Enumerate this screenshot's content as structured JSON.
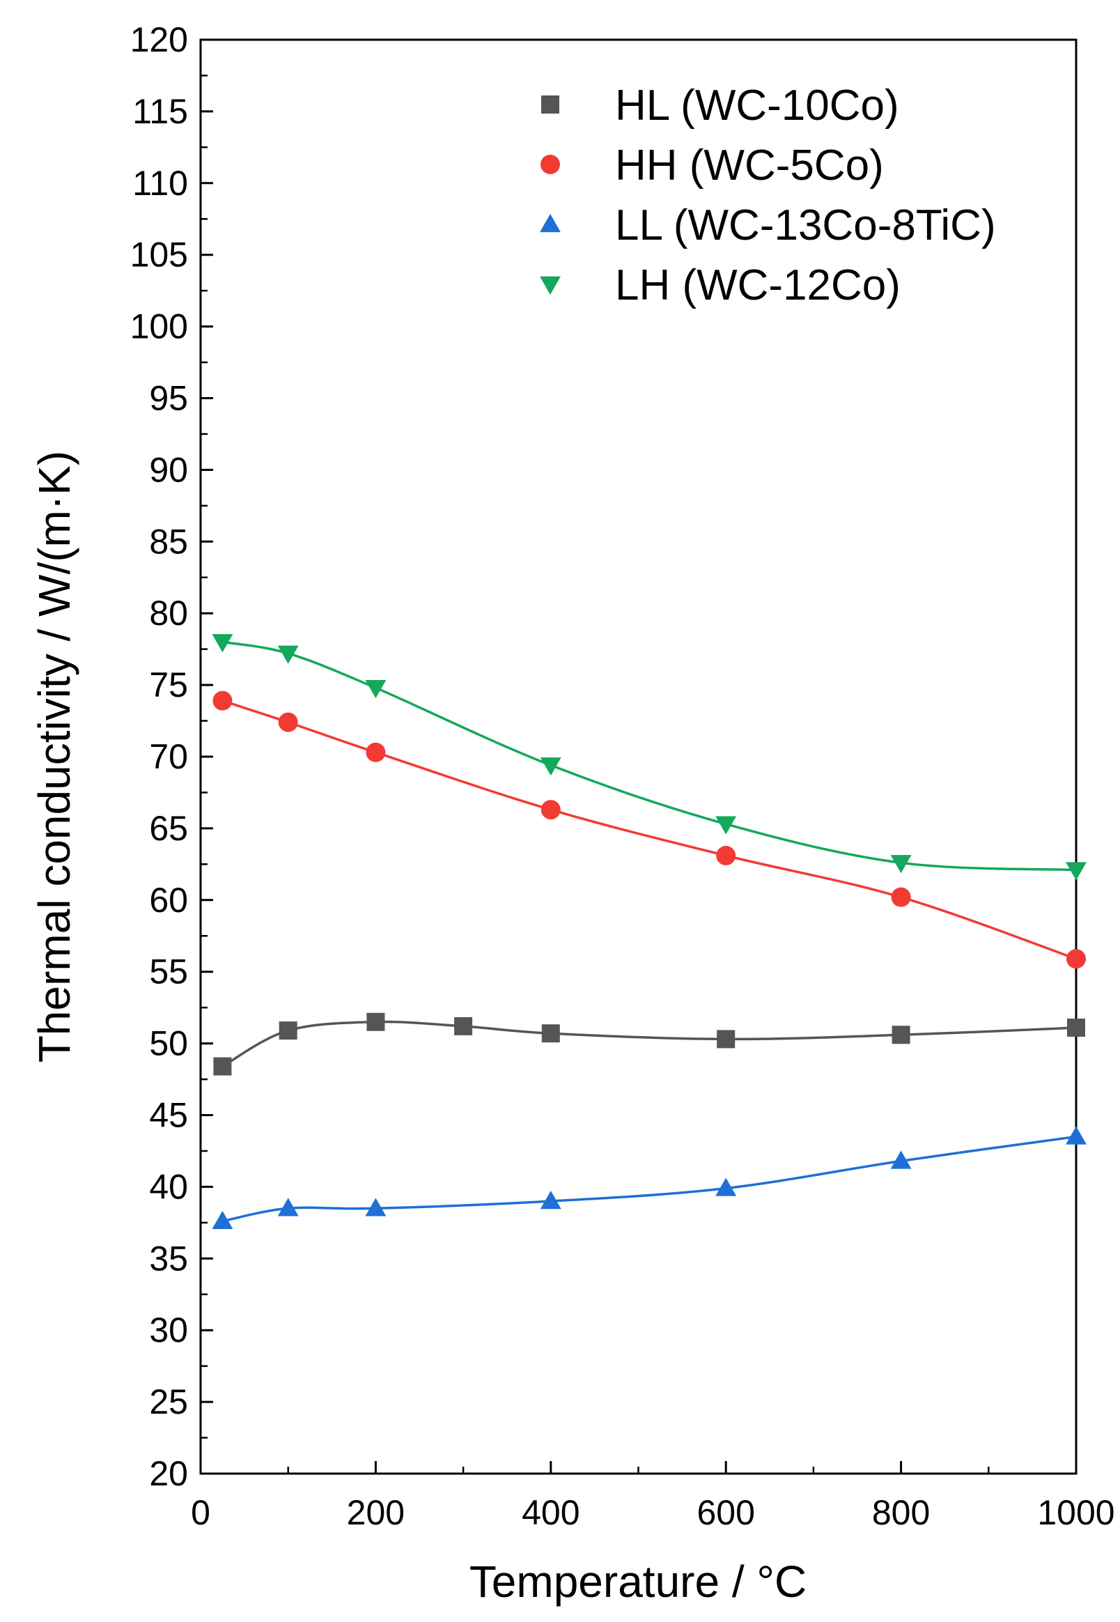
{
  "chart_data": {
    "type": "line",
    "title": "",
    "xlabel": "Temperature / °C",
    "ylabel": "Thermal conductivity / W/(m·K)",
    "xlim": [
      0,
      1000
    ],
    "ylim": [
      20,
      120
    ],
    "xticks": [
      0,
      200,
      400,
      600,
      800,
      1000
    ],
    "yticks": [
      20,
      25,
      30,
      35,
      40,
      45,
      50,
      55,
      60,
      65,
      70,
      75,
      80,
      85,
      90,
      95,
      100,
      105,
      110,
      115,
      120
    ],
    "grid": false,
    "legend_position": "top-right",
    "series": [
      {
        "name": "HL (WC-10Co)",
        "marker": "square",
        "color": "#555555",
        "x": [
          25,
          100,
          200,
          300,
          400,
          600,
          800,
          1000
        ],
        "values": [
          48.4,
          50.9,
          51.5,
          51.2,
          50.7,
          50.3,
          50.6,
          51.1
        ]
      },
      {
        "name": "HH (WC-5Co)",
        "marker": "circle",
        "color": "#f23a35",
        "x": [
          25,
          100,
          200,
          400,
          600,
          800,
          1000
        ],
        "values": [
          73.9,
          72.4,
          70.3,
          66.3,
          63.1,
          60.2,
          55.9
        ]
      },
      {
        "name": "LL (WC-13Co-8TiC)",
        "marker": "triangle-up",
        "color": "#1f6fd6",
        "x": [
          25,
          100,
          200,
          400,
          600,
          800,
          1000
        ],
        "values": [
          37.6,
          38.5,
          38.5,
          39.0,
          39.9,
          41.8,
          43.5
        ]
      },
      {
        "name": "LH (WC-12Co)",
        "marker": "triangle-down",
        "color": "#14a85a",
        "x": [
          25,
          100,
          200,
          400,
          600,
          800,
          1000
        ],
        "values": [
          78.0,
          77.2,
          74.8,
          69.4,
          65.3,
          62.6,
          62.1
        ]
      }
    ]
  }
}
